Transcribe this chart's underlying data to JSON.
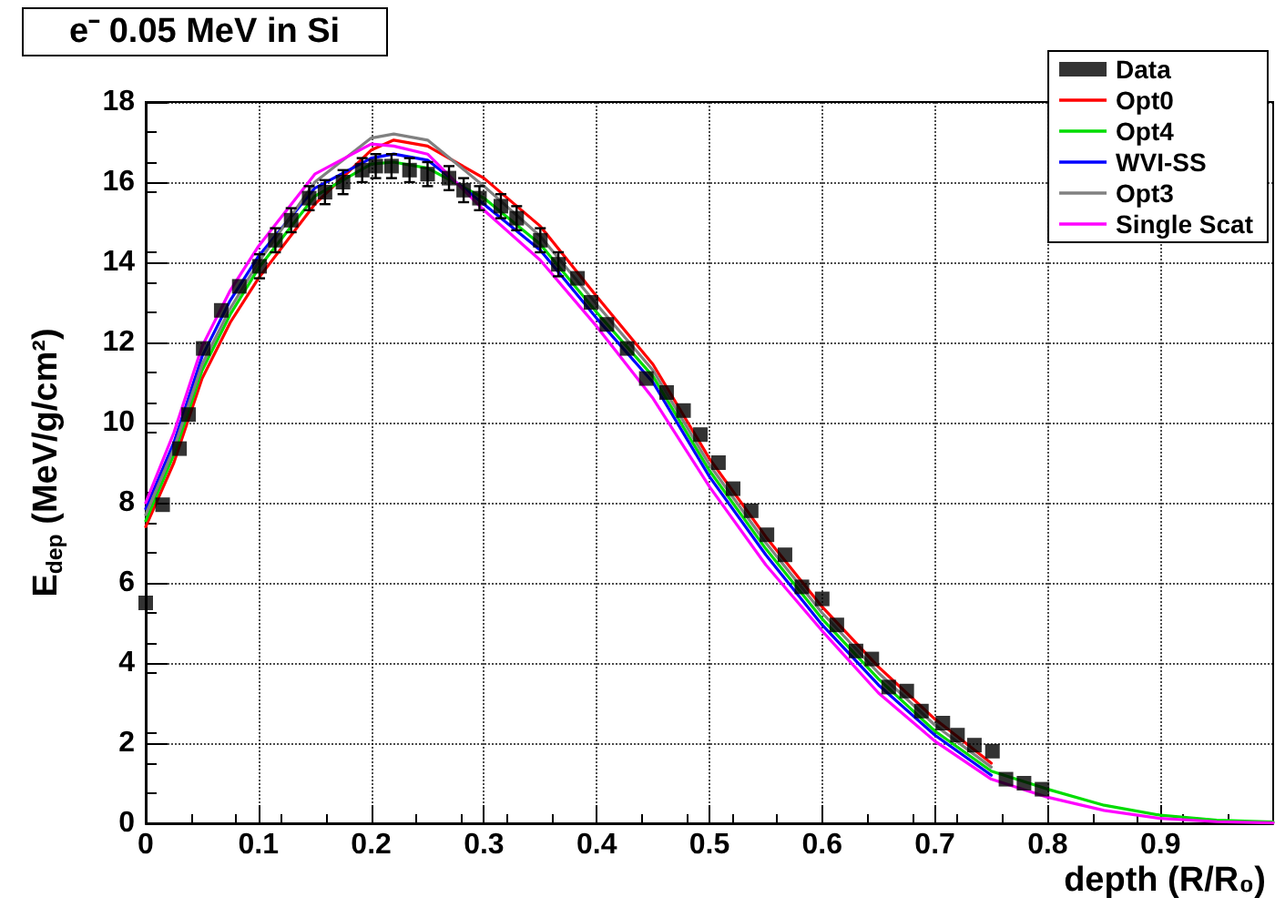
{
  "chart_data": {
    "type": "line",
    "title": "e⁻ 0.05 MeV in Si",
    "xlabel": "depth (R/R₀)",
    "ylabel": "E$_{dep}$ (MeV/g/cm²)",
    "x": [
      0,
      0.025,
      0.05,
      0.075,
      0.1,
      0.15,
      0.2,
      0.22,
      0.25,
      0.3,
      0.35,
      0.4,
      0.45,
      0.5,
      0.55,
      0.6,
      0.65,
      0.7,
      0.75,
      0.8,
      0.85,
      0.9,
      0.95,
      1.0
    ],
    "series": [
      {
        "name": "Data",
        "type": "scatter",
        "marker": "square",
        "color": "#000000",
        "x": [
          0,
          0.015,
          0.03,
          0.038,
          0.051,
          0.067,
          0.083,
          0.101,
          0.115,
          0.129,
          0.145,
          0.159,
          0.175,
          0.192,
          0.204,
          0.218,
          0.234,
          0.25,
          0.269,
          0.282,
          0.296,
          0.315,
          0.329,
          0.35,
          0.366,
          0.383,
          0.395,
          0.409,
          0.427,
          0.444,
          0.462,
          0.477,
          0.492,
          0.508,
          0.521,
          0.537,
          0.551,
          0.567,
          0.582,
          0.6,
          0.613,
          0.63,
          0.644,
          0.659,
          0.675,
          0.688,
          0.707,
          0.72,
          0.735,
          0.751,
          0.763,
          0.779,
          0.795
        ],
        "values": [
          5.5,
          7.95,
          9.35,
          10.2,
          11.85,
          12.8,
          13.4,
          13.9,
          14.55,
          15.05,
          15.6,
          15.75,
          16.0,
          16.3,
          16.4,
          16.4,
          16.3,
          16.2,
          16.1,
          15.8,
          15.6,
          15.4,
          15.1,
          14.55,
          13.95,
          13.6,
          13.0,
          12.45,
          11.85,
          11.1,
          10.75,
          10.3,
          9.7,
          9.0,
          8.35,
          7.8,
          7.2,
          6.7,
          5.9,
          5.6,
          4.95,
          4.3,
          4.1,
          3.4,
          3.3,
          2.8,
          2.5,
          2.2,
          1.95,
          1.8,
          1.1,
          1.0,
          0.85
        ],
        "errors": [
          null,
          null,
          null,
          null,
          null,
          null,
          null,
          0.3,
          0.3,
          0.3,
          0.3,
          0.3,
          0.3,
          0.3,
          0.3,
          0.3,
          0.3,
          0.3,
          0.3,
          0.3,
          0.3,
          0.3,
          0.3,
          0.3,
          0.3,
          null,
          null,
          null,
          null,
          null,
          null,
          null,
          null,
          null,
          null,
          null,
          null,
          null,
          null,
          null,
          null,
          null,
          null,
          null,
          null,
          null,
          null,
          null,
          null,
          null,
          null,
          null,
          null
        ]
      },
      {
        "name": "Opt0",
        "color": "#ff0000",
        "values": [
          7.4,
          9.0,
          11.1,
          12.5,
          13.6,
          15.45,
          16.8,
          17.05,
          16.9,
          16.1,
          14.9,
          13.15,
          11.45,
          9.1,
          7.15,
          5.4,
          3.9,
          2.6,
          1.5,
          null,
          null,
          null,
          null,
          null
        ]
      },
      {
        "name": "Opt4",
        "color": "#00dd00",
        "values": [
          7.55,
          9.2,
          11.3,
          12.7,
          13.85,
          15.65,
          16.45,
          16.5,
          16.35,
          15.6,
          14.45,
          12.75,
          11.15,
          8.8,
          6.85,
          5.1,
          3.6,
          2.3,
          1.3,
          0.85,
          0.45,
          0.2,
          0.08,
          0.03
        ]
      },
      {
        "name": "WVI-SS",
        "color": "#0000ff",
        "values": [
          7.85,
          9.5,
          11.65,
          13.05,
          14.15,
          15.85,
          16.6,
          16.7,
          16.55,
          15.45,
          14.3,
          12.6,
          11.0,
          8.65,
          6.7,
          4.95,
          3.45,
          2.2,
          1.2,
          null,
          null,
          null,
          null,
          null
        ]
      },
      {
        "name": "Opt3",
        "color": "#808080",
        "values": [
          7.7,
          9.35,
          11.45,
          12.85,
          14.0,
          16.0,
          17.1,
          17.2,
          17.05,
          15.9,
          14.65,
          12.95,
          11.3,
          8.95,
          7.0,
          5.25,
          3.75,
          2.45,
          1.4,
          null,
          null,
          null,
          null,
          null
        ]
      },
      {
        "name": "Single Scat",
        "color": "#ff00ff",
        "values": [
          8.0,
          9.75,
          11.9,
          13.3,
          14.4,
          16.2,
          16.95,
          16.9,
          16.7,
          15.3,
          14.05,
          12.4,
          10.6,
          8.4,
          6.45,
          4.8,
          3.25,
          2.05,
          1.1,
          0.65,
          0.32,
          0.12,
          0.04,
          0.01
        ]
      }
    ],
    "marker": "none",
    "line_style": "solid",
    "xlim": [
      0,
      1
    ],
    "xticks": [
      0,
      0.1,
      0.2,
      0.3,
      0.4,
      0.5,
      0.6,
      0.7,
      0.8,
      0.9
    ],
    "ylim": [
      0,
      18
    ],
    "yticks": [
      0,
      2,
      4,
      6,
      8,
      10,
      12,
      14,
      16,
      18
    ],
    "grid": true,
    "legend": "top right"
  }
}
